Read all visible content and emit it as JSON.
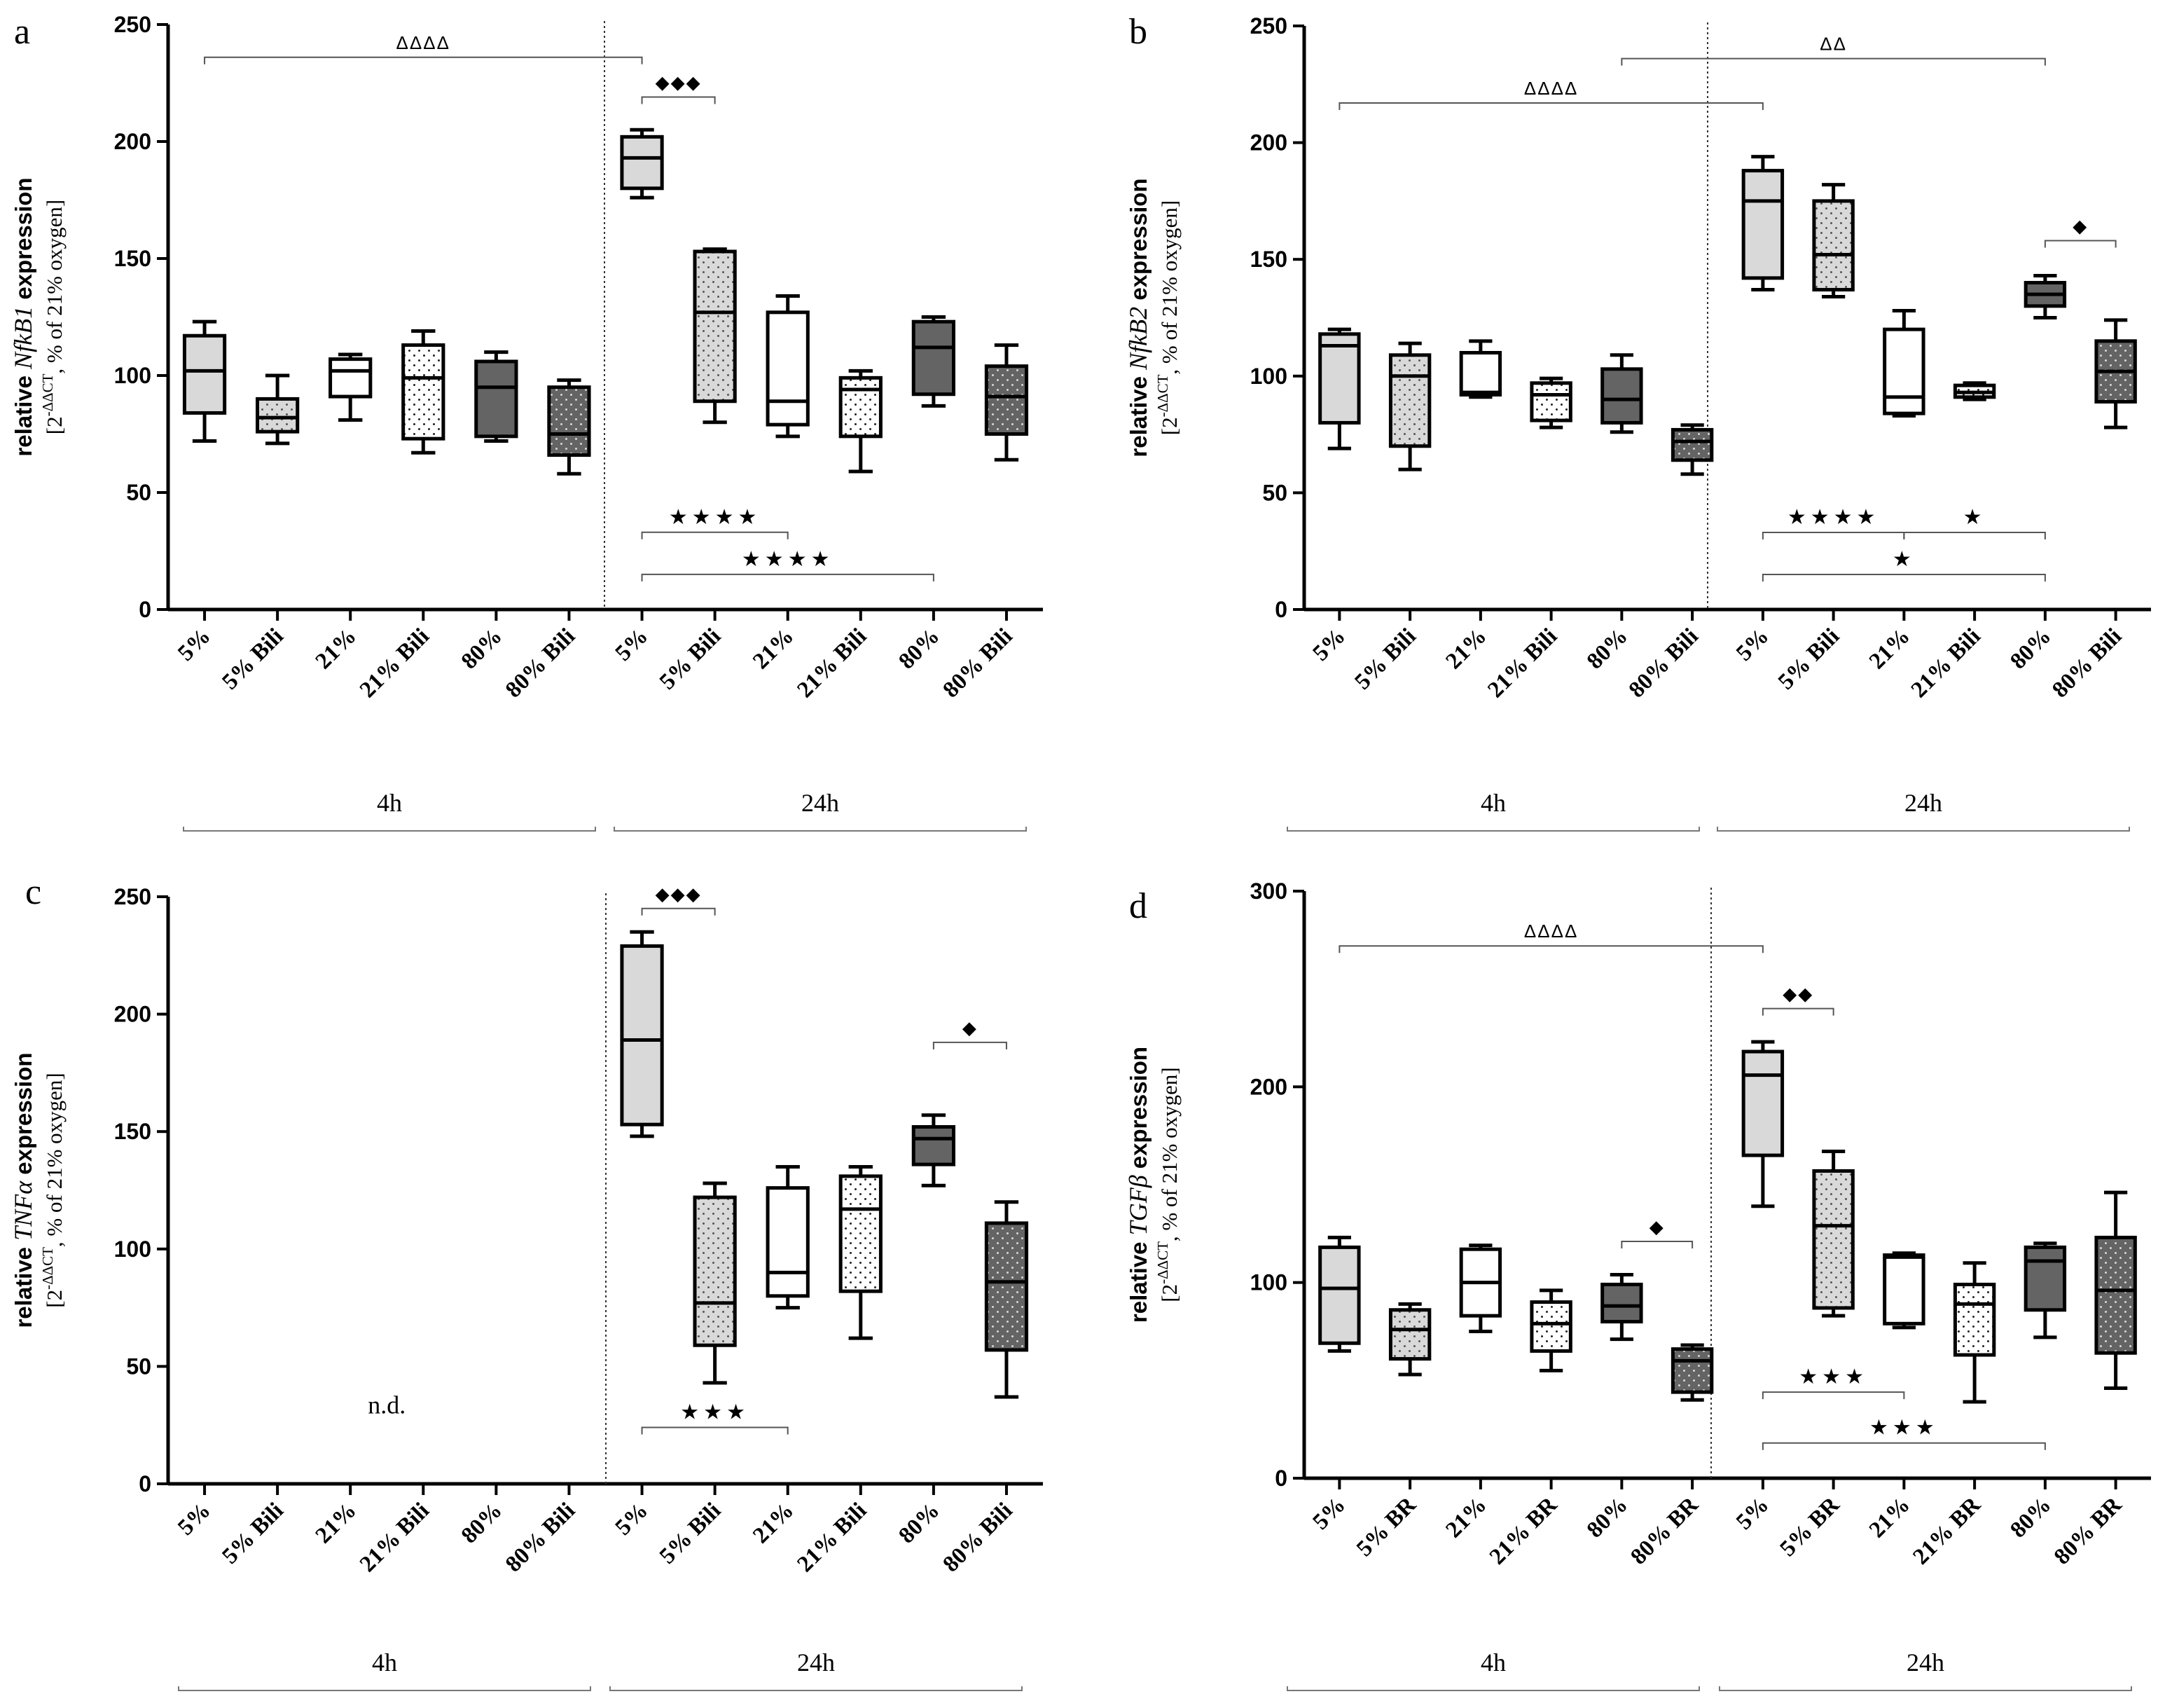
{
  "chart_data": [
    {
      "panel_letter": "a",
      "type": "box",
      "ylabel_prefix": "relative ",
      "ylabel_gene": "NfkB1",
      "ylabel_suffix": " expression",
      "ylabel_line2_prefix": "[2",
      "ylabel_sup": "-ΔΔCT",
      "ylabel_line2_suffix": ", % of 21% oxygen]",
      "ylim": [
        0,
        250
      ],
      "yticks": [
        0,
        50,
        100,
        150,
        200,
        250
      ],
      "categories": [
        "5%",
        "5% Bili",
        "21%",
        "21% Bili",
        "80%",
        "80% Bili",
        "5%",
        "5% Bili",
        "21%",
        "21% Bili",
        "80%",
        "80% Bili"
      ],
      "groups": [
        "4h",
        "24h"
      ],
      "boxes": [
        {
          "min": 72,
          "q1": 84,
          "median": 102,
          "q3": 117,
          "max": 123
        },
        {
          "min": 71,
          "q1": 76,
          "median": 82,
          "q3": 90,
          "max": 100
        },
        {
          "min": 81,
          "q1": 91,
          "median": 102,
          "q3": 107,
          "max": 109
        },
        {
          "min": 67,
          "q1": 73,
          "median": 99,
          "q3": 113,
          "max": 119
        },
        {
          "min": 72,
          "q1": 74,
          "median": 95,
          "q3": 106,
          "max": 110
        },
        {
          "min": 58,
          "q1": 66,
          "median": 75,
          "q3": 95,
          "max": 98
        },
        {
          "min": 176,
          "q1": 180,
          "median": 193,
          "q3": 202,
          "max": 205
        },
        {
          "min": 80,
          "q1": 89,
          "median": 127,
          "q3": 153,
          "max": 154
        },
        {
          "min": 74,
          "q1": 79,
          "median": 89,
          "q3": 127,
          "max": 134
        },
        {
          "min": 59,
          "q1": 74,
          "median": 94,
          "q3": 99,
          "max": 102
        },
        {
          "min": 87,
          "q1": 92,
          "median": 112,
          "q3": 123,
          "max": 125
        },
        {
          "min": 64,
          "q1": 75,
          "median": 91,
          "q3": 104,
          "max": 113
        }
      ],
      "annotations": [
        {
          "label": "ΔΔΔΔ",
          "from": 1,
          "to": 7,
          "y": 236
        },
        {
          "label": "◆◆◆",
          "from": 7,
          "to": 8,
          "y": 219
        },
        {
          "label": "★★★★",
          "from": 7,
          "to": 9,
          "y": 33
        },
        {
          "label": "★★★★",
          "from": 7,
          "to": 11,
          "y": 15
        }
      ],
      "note": ""
    },
    {
      "panel_letter": "b",
      "type": "box",
      "ylabel_prefix": "relative ",
      "ylabel_gene": "NfkB2",
      "ylabel_suffix": " expression",
      "ylabel_line2_prefix": "[2",
      "ylabel_sup": "-ΔΔCT",
      "ylabel_line2_suffix": ", % of 21% oxygen]",
      "ylim": [
        0,
        250
      ],
      "yticks": [
        0,
        50,
        100,
        150,
        200,
        250
      ],
      "categories": [
        "5%",
        "5% Bili",
        "21%",
        "21% Bili",
        "80%",
        "80% Bili",
        "5%",
        "5% Bili",
        "21%",
        "21% Bili",
        "80%",
        "80% Bili"
      ],
      "groups": [
        "4h",
        "24h"
      ],
      "boxes": [
        {
          "min": 69,
          "q1": 80,
          "median": 113,
          "q3": 118,
          "max": 120
        },
        {
          "min": 60,
          "q1": 70,
          "median": 100,
          "q3": 109,
          "max": 114
        },
        {
          "min": 91,
          "q1": 92,
          "median": 93,
          "q3": 110,
          "max": 115
        },
        {
          "min": 78,
          "q1": 81,
          "median": 92,
          "q3": 97,
          "max": 99
        },
        {
          "min": 76,
          "q1": 80,
          "median": 90,
          "q3": 103,
          "max": 109
        },
        {
          "min": 58,
          "q1": 64,
          "median": 72,
          "q3": 77,
          "max": 79
        },
        {
          "min": 137,
          "q1": 142,
          "median": 175,
          "q3": 188,
          "max": 194
        },
        {
          "min": 134,
          "q1": 137,
          "median": 152,
          "q3": 175,
          "max": 182
        },
        {
          "min": 83,
          "q1": 84,
          "median": 91,
          "q3": 120,
          "max": 128
        },
        {
          "min": 90,
          "q1": 91,
          "median": 93,
          "q3": 96,
          "max": 97
        },
        {
          "min": 125,
          "q1": 130,
          "median": 135,
          "q3": 140,
          "max": 143
        },
        {
          "min": 78,
          "q1": 89,
          "median": 102,
          "q3": 115,
          "max": 124
        }
      ],
      "annotations": [
        {
          "label": "ΔΔΔΔ",
          "from": 1,
          "to": 7,
          "y": 217
        },
        {
          "label": "ΔΔ",
          "from": 5,
          "to": 11,
          "y": 236
        },
        {
          "label": "◆",
          "from": 11,
          "to": 12,
          "y": 158
        },
        {
          "label": "★★★★",
          "from": 7,
          "to": 9,
          "y": 33
        },
        {
          "label": "★",
          "from": 9,
          "to": 11,
          "y": 33
        },
        {
          "label": "★",
          "from": 7,
          "to": 11,
          "y": 15
        }
      ],
      "note": ""
    },
    {
      "panel_letter": "c",
      "type": "box",
      "ylabel_prefix": "relative ",
      "ylabel_gene": "TNFα",
      "ylabel_suffix": " expression",
      "ylabel_line2_prefix": "[2",
      "ylabel_sup": "-ΔΔCT",
      "ylabel_line2_suffix": ", % of 21% oxygen]",
      "ylim": [
        0,
        250
      ],
      "yticks": [
        0,
        50,
        100,
        150,
        200,
        250
      ],
      "categories": [
        "5%",
        "5% Bili",
        "21%",
        "21% Bili",
        "80%",
        "80% Bili",
        "5%",
        "5% Bili",
        "21%",
        "21% Bili",
        "80%",
        "80% Bili"
      ],
      "groups": [
        "4h",
        "24h"
      ],
      "boxes": [
        null,
        null,
        null,
        null,
        null,
        null,
        {
          "min": 148,
          "q1": 153,
          "median": 189,
          "q3": 229,
          "max": 235
        },
        {
          "min": 43,
          "q1": 59,
          "median": 77,
          "q3": 122,
          "max": 128
        },
        {
          "min": 75,
          "q1": 80,
          "median": 90,
          "q3": 126,
          "max": 135
        },
        {
          "min": 62,
          "q1": 82,
          "median": 117,
          "q3": 131,
          "max": 135
        },
        {
          "min": 127,
          "q1": 136,
          "median": 147,
          "q3": 152,
          "max": 157
        },
        {
          "min": 37,
          "q1": 57,
          "median": 86,
          "q3": 111,
          "max": 120
        }
      ],
      "annotations": [
        {
          "label": "◆◆◆",
          "from": 7,
          "to": 8,
          "y": 245
        },
        {
          "label": "◆",
          "from": 11,
          "to": 12,
          "y": 188
        },
        {
          "label": "★★★",
          "from": 7,
          "to": 9,
          "y": 24
        }
      ],
      "note": "n.d."
    },
    {
      "panel_letter": "d",
      "type": "box",
      "ylabel_prefix": "relative ",
      "ylabel_gene": "TGFβ",
      "ylabel_suffix": " expression",
      "ylabel_line2_prefix": "[2",
      "ylabel_sup": "-ΔΔCT",
      "ylabel_line2_suffix": ", % of 21% oxygen]",
      "ylim": [
        0,
        300
      ],
      "yticks": [
        0,
        100,
        200,
        300
      ],
      "categories": [
        "5%",
        "5% BR",
        "21%",
        "21% BR",
        "80%",
        "80% BR",
        "5%",
        "5% BR",
        "21%",
        "21% BR",
        "80%",
        "80% BR"
      ],
      "groups": [
        "4h",
        "24h"
      ],
      "boxes": [
        {
          "min": 65,
          "q1": 69,
          "median": 97,
          "q3": 118,
          "max": 123
        },
        {
          "min": 53,
          "q1": 61,
          "median": 76,
          "q3": 86,
          "max": 89
        },
        {
          "min": 75,
          "q1": 83,
          "median": 100,
          "q3": 117,
          "max": 119
        },
        {
          "min": 55,
          "q1": 65,
          "median": 79,
          "q3": 90,
          "max": 96
        },
        {
          "min": 71,
          "q1": 80,
          "median": 88,
          "q3": 99,
          "max": 104
        },
        {
          "min": 40,
          "q1": 44,
          "median": 60,
          "q3": 66,
          "max": 68
        },
        {
          "min": 139,
          "q1": 165,
          "median": 206,
          "q3": 218,
          "max": 223
        },
        {
          "min": 83,
          "q1": 87,
          "median": 129,
          "q3": 157,
          "max": 167
        },
        {
          "min": 77,
          "q1": 79,
          "median": 113,
          "q3": 114,
          "max": 115
        },
        {
          "min": 39,
          "q1": 63,
          "median": 89,
          "q3": 99,
          "max": 110
        },
        {
          "min": 72,
          "q1": 86,
          "median": 111,
          "q3": 118,
          "max": 120
        },
        {
          "min": 46,
          "q1": 64,
          "median": 96,
          "q3": 123,
          "max": 146
        }
      ],
      "annotations": [
        {
          "label": "ΔΔΔΔ",
          "from": 1,
          "to": 7,
          "y": 272
        },
        {
          "label": "◆◆",
          "from": 7,
          "to": 8,
          "y": 240
        },
        {
          "label": "◆",
          "from": 5,
          "to": 6,
          "y": 121
        },
        {
          "label": "★★★",
          "from": 7,
          "to": 9,
          "y": 44
        },
        {
          "label": "★★★",
          "from": 7,
          "to": 11,
          "y": 18
        }
      ],
      "note": ""
    }
  ],
  "styles": {
    "fills": [
      "#d9d9d9",
      "#d9d9d9",
      "#ffffff",
      "#ffffff",
      "#646464",
      "#646464"
    ],
    "dots": [
      false,
      true,
      false,
      true,
      false,
      true
    ],
    "stroke": "#000000",
    "bracket": "#555555"
  }
}
